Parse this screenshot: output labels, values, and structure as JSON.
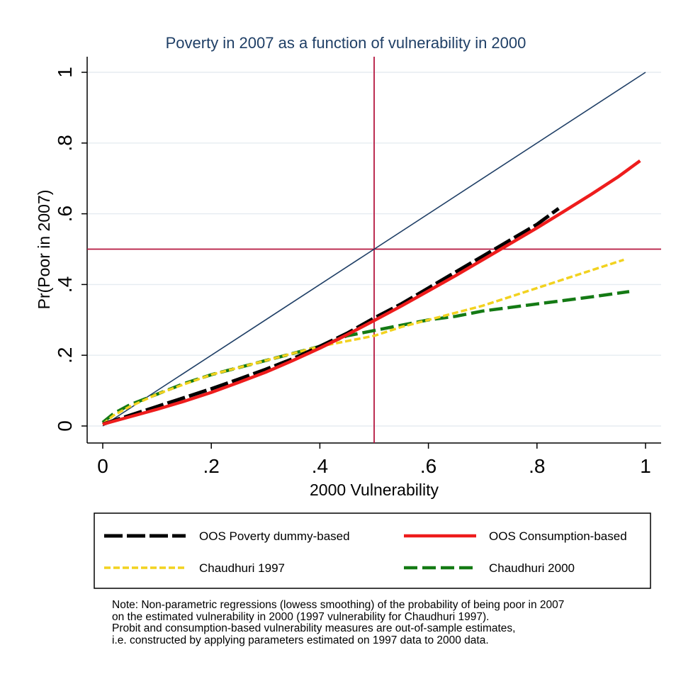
{
  "chart_data": {
    "type": "line",
    "title": "Poverty in 2007 as a function of vulnerability in 2000",
    "xlabel": "2000 Vulnerability",
    "ylabel": "Pr(Poor in 2007)",
    "xlim": [
      0,
      1
    ],
    "ylim": [
      0,
      1
    ],
    "x_ticks": [
      0,
      0.2,
      0.4,
      0.6,
      0.8,
      1
    ],
    "x_tick_labels": [
      "0",
      ".2",
      ".4",
      ".6",
      ".8",
      "1"
    ],
    "y_ticks": [
      0,
      0.2,
      0.4,
      0.6,
      0.8,
      1
    ],
    "y_tick_labels": [
      "0",
      ".2",
      ".4",
      ".6",
      ".8",
      "1"
    ],
    "grid": true,
    "legend_position": "bottom",
    "reference_lines": [
      {
        "orientation": "vertical",
        "value": 0.5,
        "color": "#b5163f"
      },
      {
        "orientation": "horizontal",
        "value": 0.5,
        "color": "#b5163f"
      },
      {
        "orientation": "diagonal",
        "from": [
          0,
          0
        ],
        "to": [
          1,
          1
        ],
        "color": "#1f3f66"
      }
    ],
    "series": [
      {
        "name": "OOS Poverty dummy-based",
        "color": "#000000",
        "dash": "long-dash",
        "x": [
          0,
          0.05,
          0.1,
          0.15,
          0.2,
          0.25,
          0.3,
          0.35,
          0.4,
          0.45,
          0.5,
          0.55,
          0.6,
          0.65,
          0.7,
          0.75,
          0.8,
          0.84
        ],
        "y": [
          0.005,
          0.03,
          0.055,
          0.08,
          0.105,
          0.132,
          0.16,
          0.19,
          0.225,
          0.262,
          0.305,
          0.345,
          0.39,
          0.435,
          0.48,
          0.525,
          0.57,
          0.615
        ]
      },
      {
        "name": "OOS Consumption-based",
        "color": "#ee1c1c",
        "dash": "solid",
        "x": [
          0,
          0.05,
          0.1,
          0.15,
          0.2,
          0.25,
          0.3,
          0.35,
          0.4,
          0.45,
          0.5,
          0.55,
          0.6,
          0.65,
          0.7,
          0.75,
          0.8,
          0.85,
          0.9,
          0.95,
          0.99
        ],
        "y": [
          0.005,
          0.026,
          0.047,
          0.07,
          0.095,
          0.123,
          0.152,
          0.185,
          0.22,
          0.258,
          0.298,
          0.339,
          0.382,
          0.425,
          0.47,
          0.515,
          0.56,
          0.607,
          0.655,
          0.705,
          0.75
        ]
      },
      {
        "name": "Chaudhuri 1997",
        "color": "#f2d21f",
        "dash": "short-dash",
        "x": [
          0,
          0.02,
          0.05,
          0.1,
          0.15,
          0.2,
          0.25,
          0.3,
          0.35,
          0.4,
          0.45,
          0.5,
          0.55,
          0.6,
          0.65,
          0.7,
          0.75,
          0.8,
          0.85,
          0.9,
          0.96
        ],
        "y": [
          0.005,
          0.03,
          0.055,
          0.09,
          0.118,
          0.145,
          0.165,
          0.185,
          0.205,
          0.225,
          0.24,
          0.255,
          0.28,
          0.3,
          0.32,
          0.34,
          0.365,
          0.39,
          0.415,
          0.44,
          0.47
        ]
      },
      {
        "name": "Chaudhuri 2000",
        "color": "#147a14",
        "dash": "dash",
        "x": [
          0,
          0.02,
          0.05,
          0.1,
          0.15,
          0.2,
          0.25,
          0.3,
          0.35,
          0.4,
          0.45,
          0.5,
          0.55,
          0.6,
          0.65,
          0.7,
          0.75,
          0.8,
          0.85,
          0.9,
          0.97
        ],
        "y": [
          0.01,
          0.035,
          0.06,
          0.09,
          0.12,
          0.145,
          0.165,
          0.185,
          0.205,
          0.225,
          0.255,
          0.27,
          0.285,
          0.3,
          0.31,
          0.325,
          0.335,
          0.345,
          0.355,
          0.365,
          0.38
        ]
      }
    ]
  },
  "note_lines": [
    "Note: Non-parametric regressions (lowess smoothing) of the probability of being poor in 2007",
    "on the estimated vulnerability in 2000 (1997 vulnerability for Chaudhuri 1997).",
    "Probit and consumption-based vulnerability measures are out-of-sample estimates,",
    "i.e. constructed by applying parameters estimated on 1997 data to 2000 data."
  ]
}
